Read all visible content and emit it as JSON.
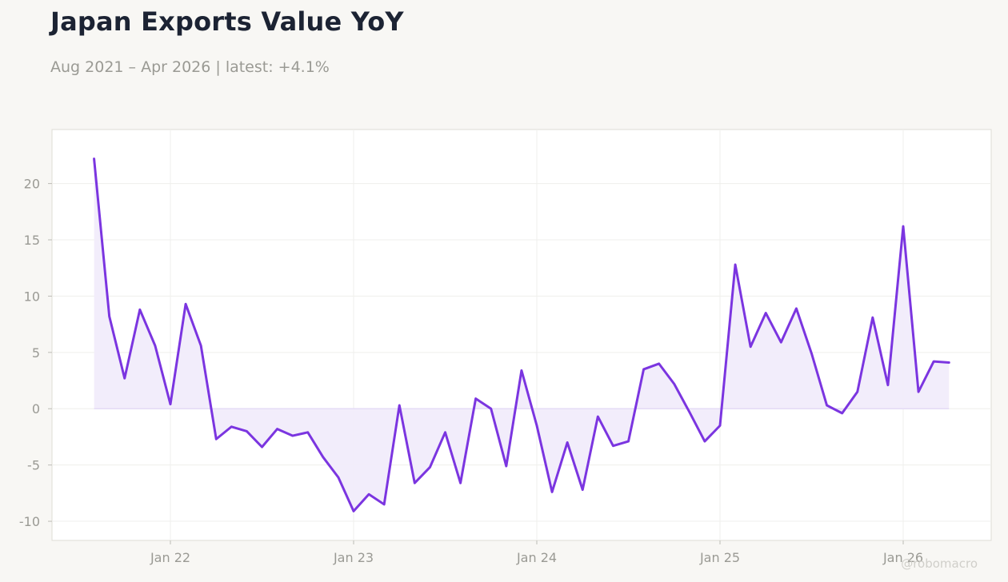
{
  "title": "Japan Exports Value YoY",
  "subtitle": "Aug 2021 – Apr 2026 | latest: +4.1%",
  "watermark": "@robomacro",
  "colors": {
    "line": "#7b35e0",
    "fill": "#f1ecfb",
    "background": "#f8f7f4",
    "plot_background": "#ffffff",
    "grid": "#efefec",
    "axis_text": "#9a9a94"
  },
  "chart_data": {
    "type": "area",
    "title": "Japan Exports Value YoY",
    "subtitle": "Aug 2021 – Apr 2026 | latest: +4.1%",
    "xlabel": "",
    "ylabel": "",
    "ylim": [
      -11.7,
      24.8
    ],
    "yticks": [
      20,
      15,
      10,
      5,
      0,
      -5,
      -10
    ],
    "xticks": [
      {
        "date": "2022-01",
        "label": "Jan 22"
      },
      {
        "date": "2023-01",
        "label": "Jan 23"
      },
      {
        "date": "2024-01",
        "label": "Jan 24"
      },
      {
        "date": "2025-01",
        "label": "Jan 25"
      },
      {
        "date": "2026-01",
        "label": "Jan 26"
      }
    ],
    "grid": true,
    "legend": "none",
    "series": [
      {
        "x": [
          "2021-08",
          "2021-09",
          "2021-10",
          "2021-11",
          "2021-12",
          "2022-01",
          "2022-02",
          "2022-03",
          "2022-04",
          "2022-05",
          "2022-06",
          "2022-07",
          "2022-08",
          "2022-09",
          "2022-10",
          "2022-11",
          "2022-12",
          "2023-01",
          "2023-02",
          "2023-03",
          "2023-04",
          "2023-05",
          "2023-06",
          "2023-07",
          "2023-08",
          "2023-09",
          "2023-10",
          "2023-11",
          "2023-12",
          "2024-01",
          "2024-02",
          "2024-03",
          "2024-04",
          "2024-05",
          "2024-06",
          "2024-07",
          "2024-08",
          "2024-09",
          "2024-10",
          "2024-11",
          "2024-12",
          "2025-01",
          "2025-02",
          "2025-03",
          "2025-04",
          "2025-05",
          "2025-06",
          "2025-07",
          "2025-08",
          "2025-09",
          "2025-10",
          "2025-11",
          "2025-12",
          "2026-01",
          "2026-02",
          "2026-03",
          "2026-04"
        ],
        "values": [
          22.2,
          8.2,
          2.7,
          8.8,
          5.6,
          0.4,
          9.3,
          5.6,
          -2.7,
          -1.6,
          -2.0,
          -3.4,
          -1.8,
          -2.4,
          -2.1,
          -4.3,
          -6.1,
          -9.1,
          -7.6,
          -8.5,
          0.3,
          -6.6,
          -5.2,
          -2.1,
          -6.6,
          0.9,
          0.0,
          -5.1,
          3.4,
          -1.5,
          -7.4,
          -3.0,
          -7.2,
          -0.7,
          -3.3,
          -2.9,
          3.5,
          4.0,
          2.2,
          -0.3,
          -2.9,
          -1.5,
          12.8,
          5.5,
          8.5,
          5.9,
          8.9,
          4.9,
          0.3,
          -0.4,
          1.5,
          8.1,
          2.1,
          16.2,
          1.5,
          4.2,
          4.1
        ]
      }
    ]
  }
}
